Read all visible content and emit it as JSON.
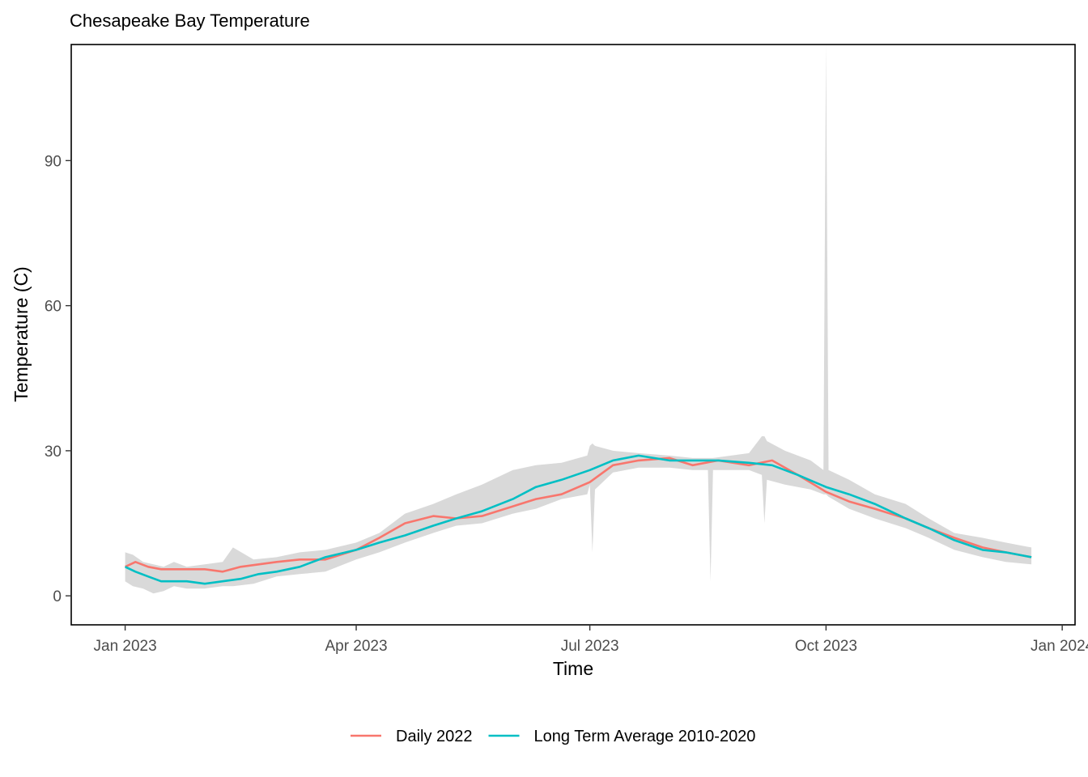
{
  "chart_data": {
    "type": "line",
    "title": "Chesapeake Bay Temperature",
    "xlabel": "Time",
    "ylabel": "Temperature (C)",
    "x_ticks": [
      {
        "label": "Jan 2023",
        "value": "2023-01-01"
      },
      {
        "label": "Apr 2023",
        "value": "2023-04-01"
      },
      {
        "label": "Jul 2023",
        "value": "2023-07-01"
      },
      {
        "label": "Oct 2023",
        "value": "2023-10-01"
      },
      {
        "label": "Jan 2024",
        "value": "2024-01-01"
      }
    ],
    "y_ticks": [
      0,
      30,
      60,
      90
    ],
    "xlim": [
      "2022-12-11",
      "2024-01-06"
    ],
    "ylim": [
      -6,
      114
    ],
    "grid": false,
    "legend_position": "bottom",
    "band": {
      "fill": "#d9d9d9",
      "x": [
        "2023-01-01",
        "2023-01-04",
        "2023-01-08",
        "2023-01-12",
        "2023-01-16",
        "2023-01-20",
        "2023-01-25",
        "2023-02-01",
        "2023-02-08",
        "2023-02-12",
        "2023-02-20",
        "2023-03-01",
        "2023-03-10",
        "2023-03-20",
        "2023-04-01",
        "2023-04-10",
        "2023-04-20",
        "2023-05-01",
        "2023-05-10",
        "2023-05-20",
        "2023-06-01",
        "2023-06-10",
        "2023-06-20",
        "2023-06-30",
        "2023-07-01",
        "2023-07-02",
        "2023-07-03",
        "2023-07-10",
        "2023-07-20",
        "2023-08-01",
        "2023-08-10",
        "2023-08-16",
        "2023-08-17",
        "2023-08-18",
        "2023-08-25",
        "2023-09-01",
        "2023-09-06",
        "2023-09-07",
        "2023-09-08",
        "2023-09-15",
        "2023-09-25",
        "2023-09-30",
        "2023-10-01",
        "2023-10-02",
        "2023-10-10",
        "2023-10-20",
        "2023-11-01",
        "2023-11-10",
        "2023-11-20",
        "2023-12-01",
        "2023-12-10",
        "2023-12-20"
      ],
      "upper": [
        9,
        8.5,
        7,
        6.5,
        6,
        7,
        6,
        6.5,
        7,
        10,
        7.5,
        8,
        9,
        9.5,
        11,
        13,
        17,
        19,
        21,
        23,
        26,
        27,
        27.5,
        29,
        31,
        31.5,
        31,
        30,
        29.5,
        29,
        28.5,
        28.5,
        28.5,
        28.5,
        29,
        29.5,
        33,
        33,
        32,
        30,
        28,
        26,
        114,
        26,
        24,
        21,
        19,
        16,
        13,
        12,
        11,
        10
      ],
      "lower": [
        3,
        2,
        1.5,
        0.5,
        1,
        2,
        1.5,
        1.5,
        2,
        2,
        2.5,
        4,
        4.5,
        5,
        7.5,
        9,
        11,
        13,
        14.5,
        15,
        17,
        18,
        20,
        21,
        23,
        9,
        22,
        25.5,
        26.5,
        26.5,
        26,
        26,
        3,
        26,
        26,
        26,
        25,
        15,
        24,
        23,
        22,
        21,
        21,
        20.5,
        18,
        16,
        14,
        12,
        9.5,
        8,
        7,
        6.5
      ]
    },
    "series": [
      {
        "name": "Daily 2022",
        "color": "#F8766D",
        "x": [
          "2023-01-01",
          "2023-01-05",
          "2023-01-10",
          "2023-01-15",
          "2023-01-20",
          "2023-01-25",
          "2023-02-01",
          "2023-02-08",
          "2023-02-15",
          "2023-02-22",
          "2023-03-01",
          "2023-03-10",
          "2023-03-20",
          "2023-04-01",
          "2023-04-10",
          "2023-04-20",
          "2023-05-01",
          "2023-05-10",
          "2023-05-20",
          "2023-06-01",
          "2023-06-10",
          "2023-06-20",
          "2023-07-01",
          "2023-07-10",
          "2023-07-20",
          "2023-08-01",
          "2023-08-10",
          "2023-08-20",
          "2023-09-01",
          "2023-09-10",
          "2023-09-20",
          "2023-10-01",
          "2023-10-10",
          "2023-10-20",
          "2023-11-01",
          "2023-11-10",
          "2023-11-20",
          "2023-12-01",
          "2023-12-10",
          "2023-12-20"
        ],
        "values": [
          6,
          7,
          6,
          5.5,
          5.5,
          5.5,
          5.5,
          5,
          6,
          6.5,
          7,
          7.5,
          7.5,
          9.5,
          12,
          15,
          16.5,
          16,
          16.5,
          18.5,
          20,
          21,
          23.5,
          27,
          28,
          28.5,
          27,
          28,
          27,
          28,
          25,
          21.5,
          19.5,
          18,
          16,
          14,
          12,
          10,
          9,
          8
        ]
      },
      {
        "name": "Long Term Average 2010-2020",
        "color": "#00BFC4",
        "x": [
          "2023-01-01",
          "2023-01-05",
          "2023-01-10",
          "2023-01-15",
          "2023-01-20",
          "2023-01-25",
          "2023-02-01",
          "2023-02-08",
          "2023-02-15",
          "2023-02-22",
          "2023-03-01",
          "2023-03-10",
          "2023-03-20",
          "2023-04-01",
          "2023-04-10",
          "2023-04-20",
          "2023-05-01",
          "2023-05-10",
          "2023-05-20",
          "2023-06-01",
          "2023-06-10",
          "2023-06-20",
          "2023-07-01",
          "2023-07-10",
          "2023-07-20",
          "2023-08-01",
          "2023-08-10",
          "2023-08-20",
          "2023-09-01",
          "2023-09-10",
          "2023-09-20",
          "2023-10-01",
          "2023-10-10",
          "2023-10-20",
          "2023-11-01",
          "2023-11-10",
          "2023-11-20",
          "2023-12-01",
          "2023-12-10",
          "2023-12-20"
        ],
        "values": [
          6,
          5,
          4,
          3,
          3,
          3,
          2.5,
          3,
          3.5,
          4.5,
          5,
          6,
          8,
          9.5,
          11,
          12.5,
          14.5,
          16,
          17.5,
          20,
          22.5,
          24,
          26,
          28,
          29,
          28,
          28,
          28,
          27.5,
          27,
          25,
          22.5,
          21,
          19,
          16,
          14,
          11.5,
          9.5,
          9,
          8
        ]
      }
    ]
  }
}
